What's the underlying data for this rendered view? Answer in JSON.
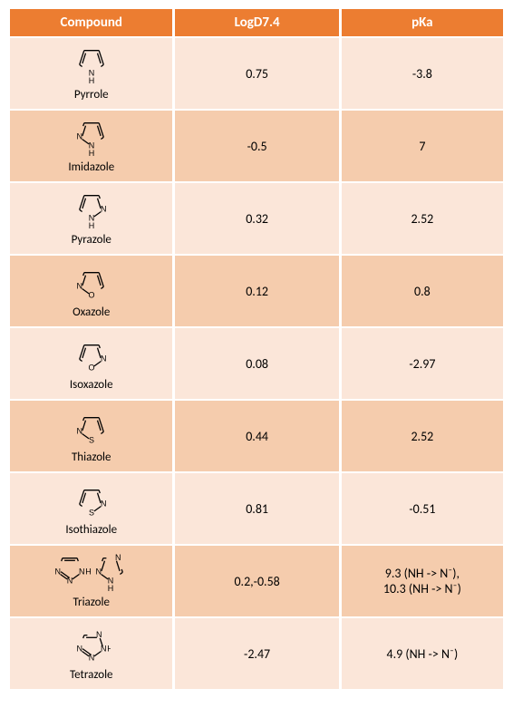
{
  "table": {
    "columns": [
      "Compound",
      "LogD7.4",
      "pKa"
    ],
    "header_bg": "#ec7d31",
    "header_text_color": "#ffffff",
    "row_bg_a": "#fbe6d9",
    "row_bg_b": "#f5ccad",
    "font_family": "Calibri",
    "header_fontsize": 15,
    "cell_fontsize": 14,
    "name_fontsize": 13,
    "rows": [
      {
        "name": "Pyrrole",
        "logd": "0.75",
        "pka": "-3.8",
        "structure": "pyrrole"
      },
      {
        "name": "Imidazole",
        "logd": "-0.5",
        "pka": "7",
        "structure": "imidazole"
      },
      {
        "name": "Pyrazole",
        "logd": "0.32",
        "pka": "2.52",
        "structure": "pyrazole"
      },
      {
        "name": "Oxazole",
        "logd": "0.12",
        "pka": "0.8",
        "structure": "oxazole"
      },
      {
        "name": "Isoxazole",
        "logd": "0.08",
        "pka": "-2.97",
        "structure": "isoxazole"
      },
      {
        "name": "Thiazole",
        "logd": "0.44",
        "pka": "2.52",
        "structure": "thiazole"
      },
      {
        "name": "Isothiazole",
        "logd": "0.81",
        "pka": "-0.51",
        "structure": "isothiazole"
      },
      {
        "name": "Triazole",
        "logd": "0.2,-0.58",
        "pka": "9.3 (NH -> N⁻),\n10.3 (NH -> N⁻)",
        "structure": "triazole"
      },
      {
        "name": "Tetrazole",
        "logd": "-2.47",
        "pka": "4.9 (NH -> N⁻)",
        "structure": "tetrazole"
      }
    ]
  },
  "structure_style": {
    "stroke": "#000000",
    "stroke_width": 1.3,
    "label_fontsize": 9,
    "label_color": "#000000"
  }
}
